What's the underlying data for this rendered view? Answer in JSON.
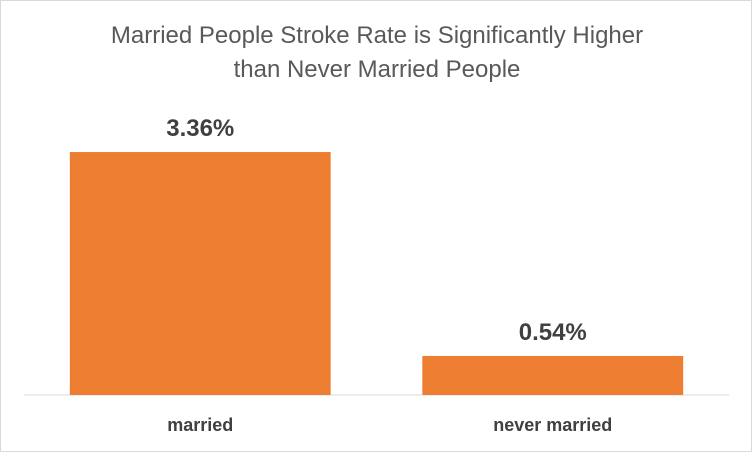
{
  "chart_data": {
    "type": "bar",
    "title_lines": [
      "Married People Stroke Rate is Significantly Higher",
      "than Never Married People"
    ],
    "categories": [
      "married",
      "never married"
    ],
    "values": [
      3.36,
      0.54
    ],
    "data_labels": [
      "3.36%",
      "0.54%"
    ],
    "ylim": [
      0,
      3.9
    ],
    "grid": false,
    "legend": "none",
    "bar_color": "#ED7D31"
  }
}
